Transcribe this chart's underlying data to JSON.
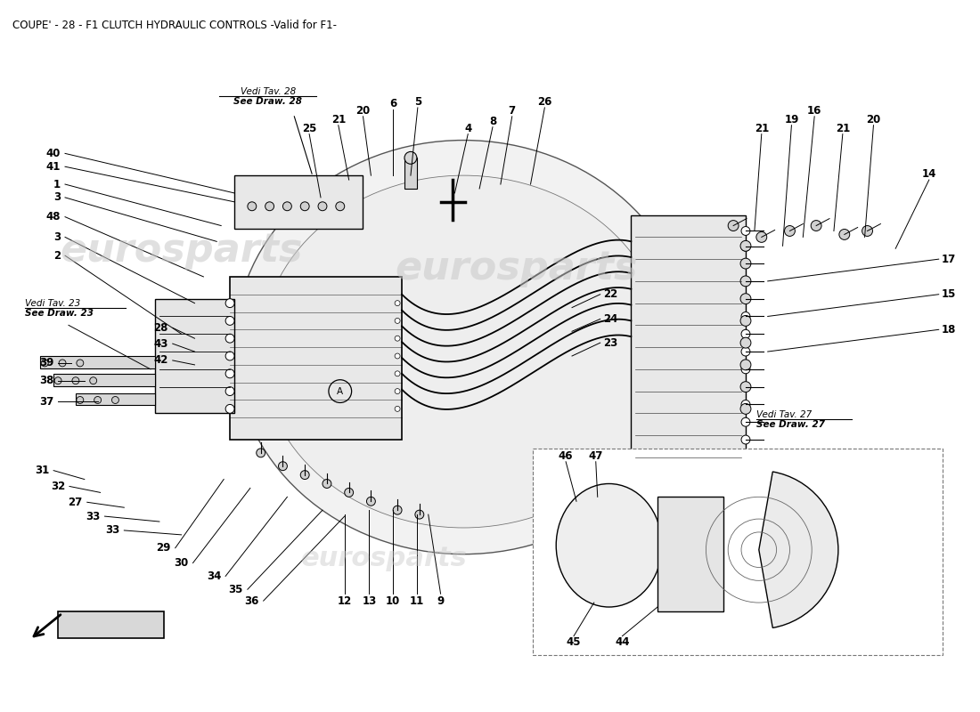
{
  "title": "COUPE' - 28 - F1 CLUTCH HYDRAULIC CONTROLS -Valid for F1-",
  "title_fontsize": 8.5,
  "background_color": "#ffffff",
  "fig_width": 11.0,
  "fig_height": 8.0,
  "watermark": "eurosparts",
  "ref_tav28": "Vedi Tav. 28",
  "ref_draw28": "See Draw. 28",
  "ref_tav23": "Vedi Tav. 23",
  "ref_draw23": "See Draw. 23",
  "ref_tav27": "Vedi Tav. 27",
  "ref_draw27": "See Draw. 27"
}
